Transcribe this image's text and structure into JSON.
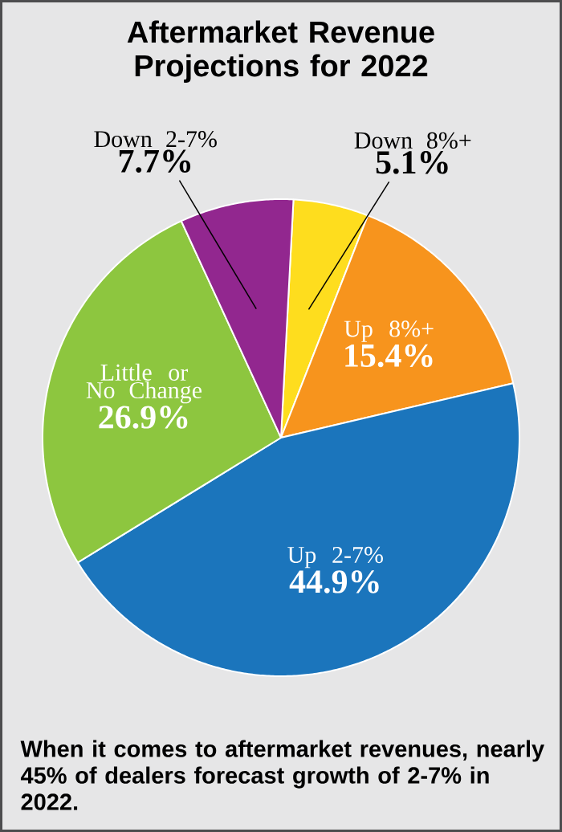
{
  "chart_data": {
    "type": "pie",
    "title": "Aftermarket Revenue Projections for 2022",
    "categories": [
      "Down 8%+",
      "Up 8%+",
      "Up 2-7%",
      "Little or No Change",
      "Down 2-7%"
    ],
    "values": [
      5.1,
      15.4,
      44.9,
      26.9,
      7.7
    ],
    "colors": [
      "#fedd1e",
      "#f7941d",
      "#1b75bc",
      "#8dc63f",
      "#92278f"
    ],
    "value_labels": [
      "5.1%",
      "15.4%",
      "44.9%",
      "26.9%",
      "7.7%"
    ],
    "annotations": [
      "When it comes to aftermarket revenues, nearly 45% of dealers forecast growth of 2-7% in 2022."
    ]
  }
}
